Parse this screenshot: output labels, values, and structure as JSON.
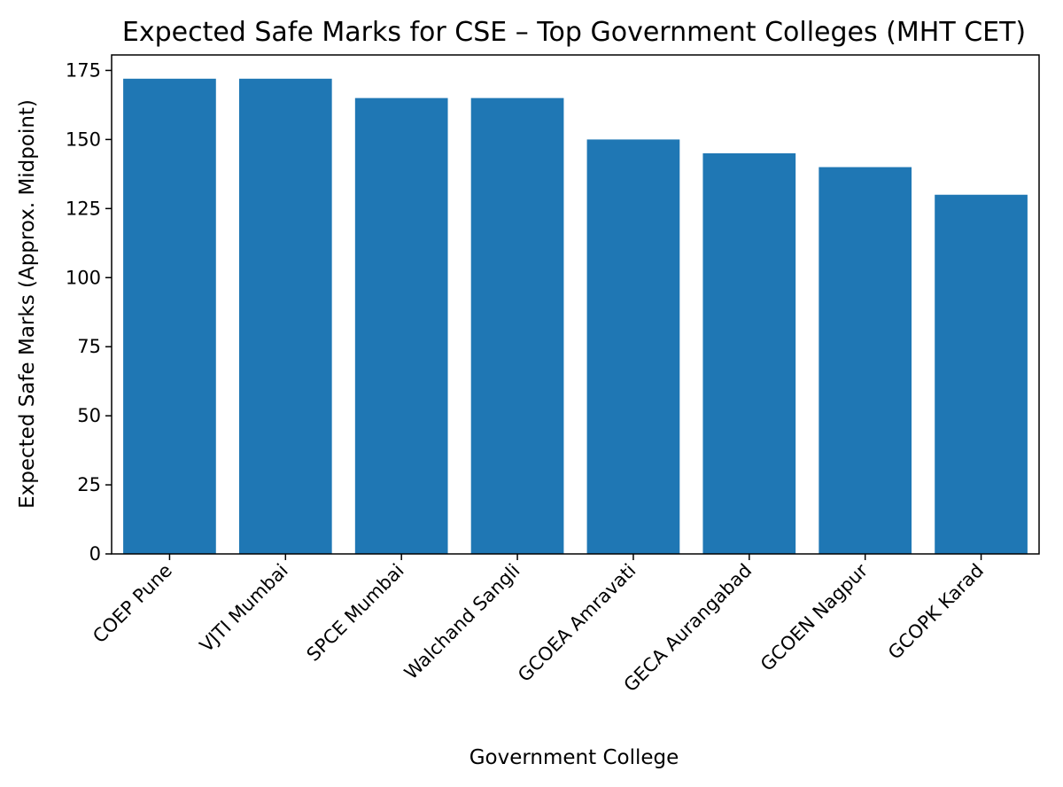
{
  "chart_data": {
    "type": "bar",
    "title": "Expected Safe Marks for CSE – Top Government Colleges (MHT CET)",
    "xlabel": "Government College",
    "ylabel": "Expected Safe Marks (Approx. Midpoint)",
    "categories": [
      "COEP Pune",
      "VJTI Mumbai",
      "SPCE Mumbai",
      "Walchand Sangli",
      "GCOEA Amravati",
      "GECA Aurangabad",
      "GCOEN Nagpur",
      "GCOPK Karad"
    ],
    "values": [
      172,
      172,
      165,
      165,
      150,
      145,
      140,
      130
    ],
    "yticks": [
      0,
      25,
      50,
      75,
      100,
      125,
      150,
      175
    ],
    "ylim": [
      0,
      180.6
    ],
    "grid": false,
    "bar_color": "#1f77b4"
  }
}
